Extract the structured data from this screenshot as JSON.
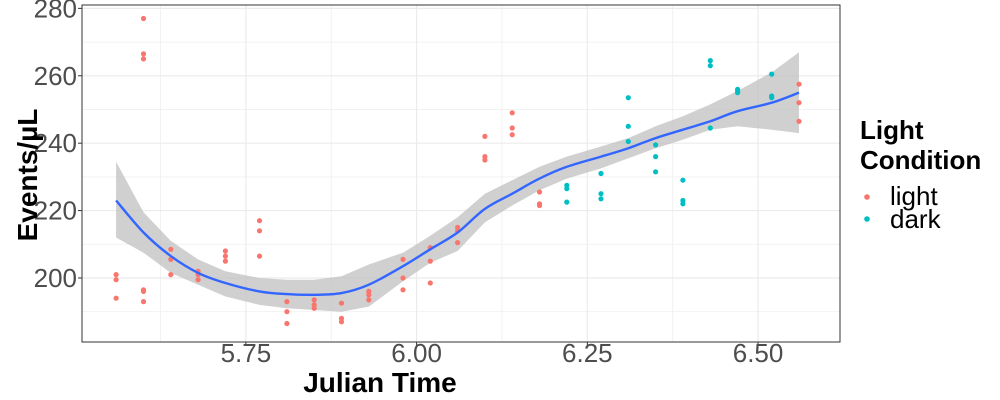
{
  "chart_data": {
    "type": "scatter",
    "xlabel": "Julian Time",
    "ylabel": "Events/µL",
    "legend_title": [
      "Light",
      "Condition"
    ],
    "legend_position": "right",
    "grid": true,
    "xlim": [
      5.51,
      6.62
    ],
    "ylim": [
      181,
      281
    ],
    "x_ticks": [
      5.75,
      6.0,
      6.25,
      6.5
    ],
    "x_tick_labels": [
      "5.75",
      "6.00",
      "6.25",
      "6.50"
    ],
    "y_ticks": [
      200,
      220,
      240,
      260,
      280
    ],
    "y_tick_labels": [
      "200",
      "220",
      "240",
      "260",
      "280"
    ],
    "colors": {
      "light": "#F8766D",
      "dark": "#00BFC4",
      "smooth_line": "#3366FF",
      "ribbon": "#BEBEBE"
    },
    "series": [
      {
        "name": "light",
        "color": "#F8766D",
        "points": [
          [
            5.56,
            201
          ],
          [
            5.56,
            199.5
          ],
          [
            5.56,
            194
          ],
          [
            5.6,
            277
          ],
          [
            5.6,
            266.5
          ],
          [
            5.6,
            265
          ],
          [
            5.6,
            196.5
          ],
          [
            5.6,
            196
          ],
          [
            5.6,
            193
          ],
          [
            5.64,
            208.5
          ],
          [
            5.64,
            205.5
          ],
          [
            5.64,
            201
          ],
          [
            5.68,
            202
          ],
          [
            5.68,
            201
          ],
          [
            5.68,
            199.5
          ],
          [
            5.72,
            208
          ],
          [
            5.72,
            206.5
          ],
          [
            5.72,
            205
          ],
          [
            5.77,
            217
          ],
          [
            5.77,
            214
          ],
          [
            5.77,
            206.5
          ],
          [
            5.81,
            193
          ],
          [
            5.81,
            190
          ],
          [
            5.81,
            186.5
          ],
          [
            5.85,
            193.5
          ],
          [
            5.85,
            192
          ],
          [
            5.85,
            191
          ],
          [
            5.89,
            192.5
          ],
          [
            5.89,
            188
          ],
          [
            5.89,
            187
          ],
          [
            5.93,
            196
          ],
          [
            5.93,
            195
          ],
          [
            5.93,
            193.5
          ],
          [
            5.98,
            205.5
          ],
          [
            5.98,
            200
          ],
          [
            5.98,
            196.5
          ],
          [
            6.02,
            209
          ],
          [
            6.02,
            205
          ],
          [
            6.02,
            198.5
          ],
          [
            6.06,
            215
          ],
          [
            6.06,
            214
          ],
          [
            6.06,
            210.5
          ],
          [
            6.1,
            242
          ],
          [
            6.1,
            236
          ],
          [
            6.1,
            235
          ],
          [
            6.14,
            249
          ],
          [
            6.14,
            244.5
          ],
          [
            6.14,
            242.5
          ],
          [
            6.18,
            225.5
          ],
          [
            6.18,
            222
          ],
          [
            6.18,
            221.5
          ],
          [
            6.56,
            257.5
          ],
          [
            6.56,
            252
          ],
          [
            6.56,
            246.5
          ]
        ]
      },
      {
        "name": "dark",
        "color": "#00BFC4",
        "points": [
          [
            6.22,
            227.5
          ],
          [
            6.22,
            226.5
          ],
          [
            6.22,
            222.5
          ],
          [
            6.27,
            231
          ],
          [
            6.27,
            225
          ],
          [
            6.27,
            223.5
          ],
          [
            6.31,
            253.5
          ],
          [
            6.31,
            245
          ],
          [
            6.31,
            240.5
          ],
          [
            6.35,
            239.5
          ],
          [
            6.35,
            236
          ],
          [
            6.35,
            231.5
          ],
          [
            6.39,
            229
          ],
          [
            6.39,
            223
          ],
          [
            6.39,
            222
          ],
          [
            6.43,
            264.5
          ],
          [
            6.43,
            263
          ],
          [
            6.43,
            244.5
          ],
          [
            6.47,
            256
          ],
          [
            6.47,
            255.5
          ],
          [
            6.47,
            255
          ],
          [
            6.52,
            260.5
          ],
          [
            6.52,
            254
          ],
          [
            6.52,
            253.5
          ]
        ]
      }
    ],
    "smooth": {
      "method": "loess",
      "x": [
        5.56,
        5.6,
        5.64,
        5.68,
        5.72,
        5.77,
        5.81,
        5.85,
        5.89,
        5.93,
        5.98,
        6.02,
        6.06,
        6.1,
        6.14,
        6.18,
        6.22,
        6.27,
        6.31,
        6.35,
        6.39,
        6.43,
        6.47,
        6.52,
        6.56
      ],
      "y": [
        223,
        213.5,
        206.5,
        201.5,
        198.5,
        196,
        195.2,
        195,
        195.5,
        198,
        203.5,
        208.5,
        213.5,
        220.5,
        225,
        229.5,
        233,
        236,
        238.5,
        241.5,
        244,
        246.5,
        249.5,
        252,
        255
      ],
      "lower": [
        212,
        207.5,
        201.5,
        198,
        194.5,
        192,
        191,
        190.5,
        190,
        191.5,
        199,
        204.5,
        208,
        216.5,
        221.5,
        226,
        229.5,
        232.5,
        235.5,
        238.5,
        241,
        244,
        245,
        244,
        243
      ],
      "upper": [
        234.5,
        219.5,
        211,
        205.5,
        202,
        200,
        199.5,
        199.5,
        200.5,
        204,
        207.5,
        212.5,
        218,
        225,
        229,
        233,
        236,
        239,
        241.5,
        245,
        248,
        251.5,
        255.5,
        261,
        267
      ]
    }
  }
}
